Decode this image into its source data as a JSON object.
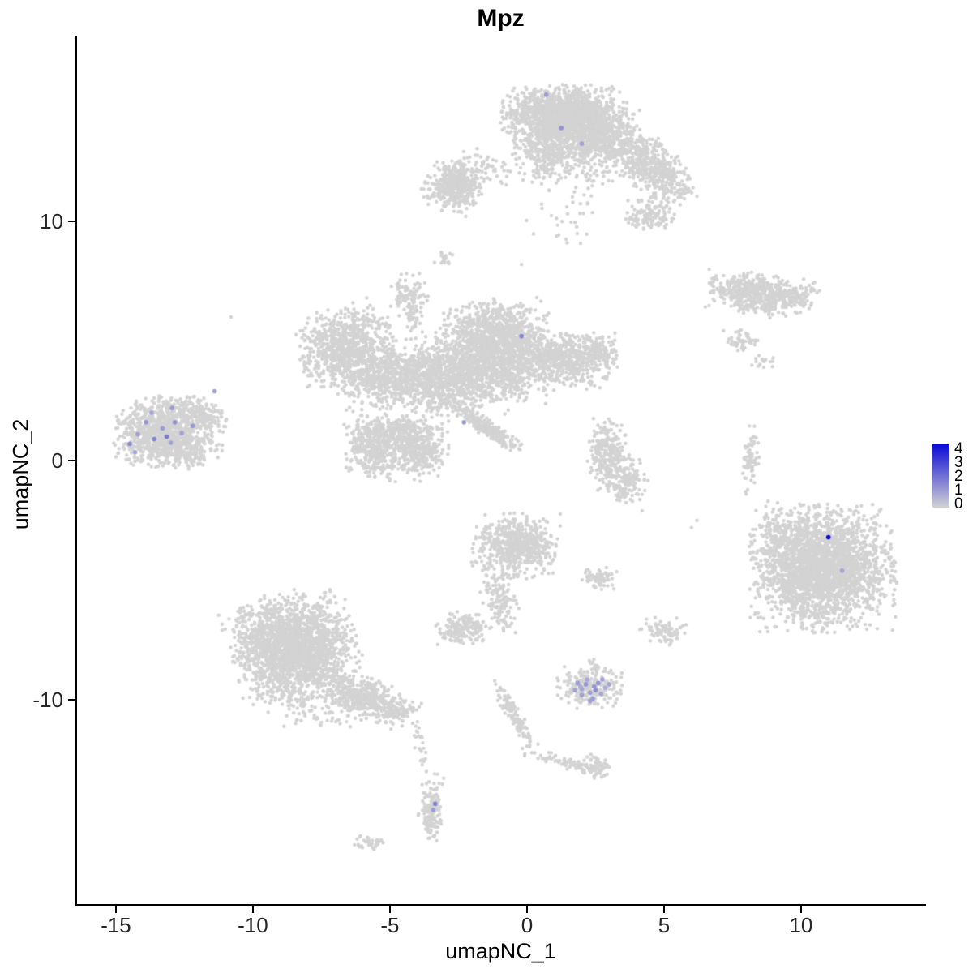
{
  "figure": {
    "title": "Mpz"
  },
  "chart_data": {
    "type": "scatter",
    "title": "Mpz",
    "xlabel": "umapNC_1",
    "ylabel": "umapNC_2",
    "xlim": [
      -16.42,
      14.5
    ],
    "ylim": [
      -18.54,
      17.73
    ],
    "x_ticks": [
      -15,
      -10,
      -5,
      0,
      5,
      10
    ],
    "y_ticks": [
      10,
      0,
      -10
    ],
    "grid": false,
    "legend_position": "right",
    "colors": {
      "low": "#d3d3d3",
      "high": "#0b0bd6"
    },
    "legend": {
      "min": 0,
      "max": 4,
      "ticks": [
        4,
        3,
        2,
        1,
        0
      ]
    },
    "clusters_note": "UMAP point clouds encoded as gaussian blobs [cx, cy, sdx, sdy, rot_deg, n_points]",
    "blobs": [
      [
        1.3,
        14.45,
        1.0,
        0.55,
        0,
        1400
      ],
      [
        2.3,
        13.5,
        0.85,
        0.7,
        0,
        650
      ],
      [
        0.6,
        12.9,
        0.5,
        0.6,
        0,
        240
      ],
      [
        3.9,
        12.8,
        0.75,
        0.45,
        -30,
        320
      ],
      [
        5.0,
        11.8,
        0.65,
        0.4,
        -35,
        260
      ],
      [
        4.5,
        10.3,
        0.45,
        0.33,
        0,
        130
      ],
      [
        1.7,
        11.9,
        0.85,
        0.7,
        0,
        60
      ],
      [
        1.2,
        9.8,
        0.6,
        0.45,
        0,
        20
      ],
      [
        -2.6,
        11.5,
        0.5,
        0.5,
        -20,
        440
      ],
      [
        -1.4,
        12.3,
        0.6,
        0.3,
        -25,
        50
      ],
      [
        -3.0,
        8.4,
        0.18,
        0.18,
        0,
        20
      ],
      [
        8.3,
        7.0,
        0.8,
        0.38,
        -8,
        500
      ],
      [
        9.7,
        6.8,
        0.5,
        0.28,
        25,
        110
      ],
      [
        7.8,
        5.0,
        0.3,
        0.22,
        0,
        50
      ],
      [
        8.7,
        4.1,
        0.22,
        0.16,
        0,
        16
      ],
      [
        -6.6,
        4.7,
        0.8,
        0.75,
        20,
        850
      ],
      [
        -5.2,
        3.4,
        0.75,
        0.55,
        0,
        460
      ],
      [
        -1.2,
        5.3,
        0.85,
        0.65,
        0,
        850
      ],
      [
        -2.9,
        3.6,
        1.1,
        0.75,
        0,
        1100
      ],
      [
        -0.8,
        3.9,
        0.8,
        0.65,
        0,
        580
      ],
      [
        1.2,
        4.3,
        0.85,
        0.5,
        -15,
        560
      ],
      [
        2.6,
        4.6,
        0.38,
        0.33,
        0,
        130
      ],
      [
        -1.5,
        1.4,
        0.8,
        0.15,
        -38,
        250
      ],
      [
        -5.5,
        0.6,
        0.5,
        0.65,
        0,
        360
      ],
      [
        -4.0,
        0.5,
        0.5,
        0.6,
        0,
        360
      ],
      [
        -4.8,
        1.3,
        0.65,
        0.28,
        0,
        180
      ],
      [
        -4.3,
        6.9,
        0.32,
        0.42,
        0,
        100
      ],
      [
        -4.1,
        5.9,
        0.2,
        0.45,
        0,
        35
      ],
      [
        -13.3,
        1.2,
        0.8,
        0.65,
        0,
        1000
      ],
      [
        -11.8,
        1.9,
        0.45,
        0.3,
        -30,
        130
      ],
      [
        -12.4,
        0.45,
        0.55,
        0.35,
        0,
        130
      ],
      [
        2.9,
        0.3,
        0.3,
        0.7,
        0,
        240
      ],
      [
        3.6,
        -0.8,
        0.36,
        0.45,
        0,
        160
      ],
      [
        8.2,
        0.1,
        0.15,
        0.6,
        0,
        70
      ],
      [
        10.8,
        -4.5,
        1.15,
        1.15,
        0,
        2600
      ],
      [
        9.3,
        -3.2,
        0.5,
        0.7,
        0,
        120
      ],
      [
        -0.4,
        -3.6,
        0.7,
        0.6,
        0,
        620
      ],
      [
        -1.0,
        -5.8,
        0.28,
        0.65,
        10,
        130
      ],
      [
        -2.3,
        -7.0,
        0.45,
        0.32,
        0,
        180
      ],
      [
        2.7,
        -4.9,
        0.32,
        0.22,
        0,
        70
      ],
      [
        5.0,
        -7.1,
        0.38,
        0.26,
        0,
        80
      ],
      [
        -8.5,
        -7.9,
        1.0,
        1.05,
        15,
        2200
      ],
      [
        -6.0,
        -9.9,
        0.75,
        0.4,
        -20,
        380
      ],
      [
        -4.7,
        -10.5,
        0.4,
        0.25,
        -10,
        100
      ],
      [
        -7.6,
        -10.6,
        0.7,
        0.28,
        0,
        50
      ],
      [
        2.3,
        -9.5,
        0.52,
        0.38,
        0,
        240
      ],
      [
        2.4,
        -8.5,
        0.14,
        0.18,
        0,
        12
      ],
      [
        -0.45,
        -10.7,
        0.8,
        0.12,
        -64,
        115
      ],
      [
        1.3,
        -12.6,
        0.7,
        0.11,
        -18,
        65
      ],
      [
        2.5,
        -12.8,
        0.28,
        0.23,
        0,
        70
      ],
      [
        -3.5,
        -14.6,
        0.2,
        0.7,
        0,
        150
      ],
      [
        -3.85,
        -12.0,
        0.11,
        0.5,
        10,
        24
      ],
      [
        -5.8,
        -16.0,
        0.28,
        0.17,
        0,
        38
      ]
    ],
    "singles": [
      [
        -10.8,
        6.0
      ],
      [
        8.0,
        -1.4
      ],
      [
        6.2,
        -2.5
      ],
      [
        6.0,
        -2.8
      ],
      [
        4.2,
        -2.1
      ],
      [
        -0.2,
        8.2
      ],
      [
        7.7,
        4.6
      ]
    ],
    "expressed_points": [
      [
        -14.5,
        0.7,
        1.4
      ],
      [
        -14.2,
        1.1,
        1.0
      ],
      [
        -13.9,
        1.6,
        1.2
      ],
      [
        -13.6,
        0.9,
        1.6
      ],
      [
        -13.3,
        1.35,
        1.1
      ],
      [
        -13.0,
        0.75,
        1.0
      ],
      [
        -12.85,
        1.6,
        1.3
      ],
      [
        -12.6,
        1.15,
        1.0
      ],
      [
        -13.7,
        2.0,
        0.9
      ],
      [
        -12.95,
        2.2,
        1.1
      ],
      [
        -12.2,
        1.45,
        1.2
      ],
      [
        -11.4,
        2.9,
        1.0
      ],
      [
        -14.3,
        0.35,
        0.9
      ],
      [
        -13.15,
        1.0,
        1.8
      ],
      [
        0.7,
        15.3,
        1.1
      ],
      [
        1.25,
        13.9,
        1.3
      ],
      [
        2.0,
        13.25,
        1.0
      ],
      [
        -0.2,
        5.2,
        1.5
      ],
      [
        -2.3,
        1.6,
        1.1
      ],
      [
        11.0,
        -3.2,
        4.0
      ],
      [
        11.5,
        -4.6,
        0.9
      ],
      [
        1.85,
        -9.3,
        1.1
      ],
      [
        2.0,
        -9.55,
        1.0
      ],
      [
        2.15,
        -9.35,
        1.2
      ],
      [
        2.3,
        -9.7,
        1.1
      ],
      [
        2.2,
        -9.15,
        0.9
      ],
      [
        2.45,
        -9.45,
        1.3
      ],
      [
        2.0,
        -9.8,
        1.0
      ],
      [
        2.4,
        -9.95,
        1.1
      ],
      [
        2.7,
        -9.75,
        0.9
      ],
      [
        1.75,
        -9.6,
        1.0
      ],
      [
        2.85,
        -9.5,
        0.8
      ],
      [
        2.3,
        -10.05,
        1.0
      ],
      [
        2.6,
        -9.3,
        1.2
      ],
      [
        3.0,
        -9.35,
        0.9
      ],
      [
        2.5,
        -9.6,
        1.4
      ],
      [
        1.95,
        -9.45,
        0.8
      ],
      [
        2.75,
        -9.15,
        1.0
      ],
      [
        -3.35,
        -14.35,
        1.6
      ],
      [
        -3.42,
        -14.6,
        1.1
      ]
    ]
  }
}
